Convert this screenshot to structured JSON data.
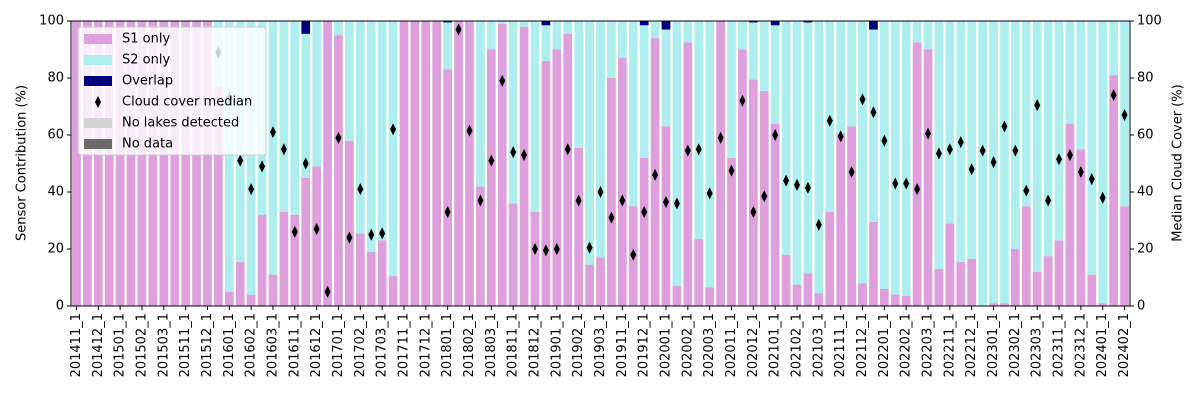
{
  "chart_data": {
    "type": "bar",
    "stacked": true,
    "ylabel": "Sensor Contribution (%)",
    "y2label": "Median Cloud Cover (%)",
    "categories": [
      "201411_1",
      null,
      "201412_1",
      null,
      "201501_1",
      null,
      "201502_1",
      null,
      "201503_1",
      null,
      "201511_1",
      null,
      "201512_1",
      null,
      "201601_1",
      null,
      "201602_1",
      null,
      "201603_1",
      null,
      "201611_1",
      null,
      "201612_1",
      null,
      "201701_1",
      null,
      "201702_1",
      null,
      "201703_1",
      null,
      "201711_1",
      null,
      "201712_1",
      null,
      "201801_1",
      null,
      "201802_1",
      null,
      "201803_1",
      null,
      "201811_1",
      null,
      "201812_1",
      null,
      "201901_1",
      null,
      "201902_1",
      null,
      "201903_1",
      null,
      "201911_1",
      null,
      "201912_1",
      null,
      "202001_1",
      null,
      "202002_1",
      null,
      "202003_1",
      null,
      "202011_1",
      null,
      "202012_1",
      null,
      "202101_1",
      null,
      "202102_1",
      null,
      "202103_1",
      null,
      "202111_1",
      null,
      "202112_1",
      null,
      "202201_1",
      null,
      "202202_1",
      null,
      "202203_1",
      null,
      "202211_1",
      null,
      "202212_1",
      null,
      "202301_1",
      null,
      "202302_1",
      null,
      "202303_1",
      null,
      "202311_1",
      null,
      "202312_1",
      null,
      "202401_1",
      null,
      "202402_1"
    ],
    "series": [
      {
        "name": "S1 only",
        "color": "#dda0dd",
        "values": [
          100,
          100,
          100,
          100,
          100,
          100,
          100,
          100,
          100,
          100,
          100,
          100,
          100,
          77,
          5,
          15.5,
          4,
          32,
          11,
          33,
          32,
          45,
          49,
          100,
          95,
          58,
          25.5,
          19,
          23,
          10.5,
          100,
          100,
          100,
          100,
          83,
          100,
          100,
          42,
          90,
          99,
          36,
          98,
          33,
          86,
          90,
          95.5,
          55.5,
          14.5,
          17,
          80,
          87,
          35,
          52,
          94,
          63,
          7,
          92.5,
          23.5,
          6.5,
          100,
          52,
          90,
          79.5,
          75.5,
          64,
          18,
          7.5,
          11.5,
          4.5,
          33,
          60.5,
          63,
          8,
          29.5,
          6,
          4,
          3.5,
          92.5,
          90,
          13,
          29,
          15.5,
          16.5,
          0,
          1,
          1,
          20,
          35,
          12,
          17.5,
          23,
          64,
          55,
          11,
          1,
          81,
          35
        ]
      },
      {
        "name": "S2 only",
        "color": "#afeeee",
        "values": [
          0,
          0,
          0,
          0,
          0,
          0,
          0,
          0,
          0,
          0,
          0,
          0,
          0,
          23,
          95,
          84.5,
          96,
          68,
          89,
          67,
          68,
          50.5,
          51,
          0,
          5,
          42,
          74.5,
          81,
          77,
          89.5,
          0,
          0,
          0,
          0,
          16.5,
          0,
          0,
          58,
          10,
          1,
          64,
          2,
          67,
          12.5,
          10,
          4.5,
          44.5,
          85.5,
          83,
          20,
          13,
          65,
          46.5,
          6,
          34,
          93,
          7.5,
          76.5,
          93.5,
          0,
          48,
          10,
          20,
          24.5,
          34.5,
          82,
          92.5,
          88,
          95.5,
          67,
          39.5,
          37,
          92,
          67.5,
          94,
          96,
          96.5,
          7.5,
          10,
          87,
          71,
          84.5,
          83.5,
          100,
          99,
          99,
          80,
          65,
          88,
          82.5,
          77,
          36,
          45,
          89,
          99,
          19,
          65
        ]
      },
      {
        "name": "Overlap",
        "color": "#000080",
        "values": [
          0,
          0,
          0,
          0,
          0,
          0,
          0,
          0,
          0,
          0,
          0,
          0,
          0,
          0,
          0,
          0,
          0,
          0,
          0,
          0,
          0,
          4.5,
          0,
          0,
          0,
          0,
          0,
          0,
          0,
          0,
          0,
          0,
          0,
          0,
          0.5,
          0,
          0,
          0,
          0,
          0,
          0,
          0,
          0,
          1.5,
          0,
          0,
          0,
          0,
          0,
          0,
          0,
          0,
          1.5,
          0,
          3,
          0,
          0,
          0,
          0,
          0,
          0,
          0,
          0.5,
          0,
          1.5,
          0,
          0,
          0.5,
          0,
          0,
          0,
          0,
          0,
          3,
          0,
          0,
          0,
          0,
          0,
          0,
          0,
          0,
          0,
          0,
          0,
          0,
          0,
          0,
          0,
          0,
          0,
          0,
          0,
          0,
          0,
          0,
          0
        ]
      },
      {
        "name": "Cloud cover median",
        "type": "scatter",
        "axis": "y2",
        "color": "#000000",
        "values": [
          null,
          null,
          null,
          null,
          null,
          null,
          null,
          null,
          null,
          null,
          null,
          null,
          null,
          89,
          73,
          51,
          41,
          49,
          61,
          55,
          26,
          50,
          27,
          5,
          59,
          24,
          41,
          25,
          25.5,
          62,
          null,
          null,
          null,
          null,
          33,
          97,
          61.5,
          37,
          51,
          79,
          54,
          53,
          20,
          19.5,
          20,
          55,
          37,
          20.5,
          40,
          31,
          37,
          18,
          33,
          46,
          36.5,
          36,
          54.5,
          55,
          39.5,
          59,
          47.5,
          72,
          33,
          38.5,
          60,
          44,
          42.5,
          41.5,
          28.5,
          65,
          59.5,
          47,
          72.5,
          68,
          58,
          43,
          43,
          41,
          60.5,
          53.5,
          55,
          57.5,
          48,
          54.5,
          50.5,
          63,
          54.5,
          40.5,
          70.5,
          37,
          51.5,
          53,
          47,
          44.5,
          38,
          74,
          67
        ]
      },
      {
        "name": "No lakes detected",
        "color": "#d3d3d3",
        "values": [
          0,
          0,
          0,
          0,
          0,
          0,
          0,
          0,
          0,
          0,
          0,
          0,
          0,
          0,
          0,
          0,
          0,
          0,
          0,
          0,
          0,
          0,
          0,
          0,
          0,
          0,
          0,
          0,
          0,
          0,
          0,
          0,
          0,
          0,
          0,
          0,
          0,
          0,
          0,
          0,
          0,
          0,
          0,
          0,
          0,
          0,
          0,
          0,
          0,
          0,
          0,
          0,
          0,
          0,
          0,
          0,
          0,
          0,
          0,
          0,
          0,
          0,
          0,
          0,
          0,
          0,
          0,
          0,
          0,
          0,
          0,
          0,
          0,
          0,
          0,
          0,
          0,
          0,
          0,
          0,
          0,
          0,
          0,
          0,
          0,
          0,
          0,
          0,
          0,
          0,
          0,
          0,
          0,
          0,
          0,
          0,
          0
        ]
      },
      {
        "name": "No data",
        "color": "#696969",
        "values": [
          0,
          0,
          0,
          0,
          0,
          0,
          0,
          0,
          0,
          0,
          0,
          0,
          0,
          0,
          0,
          0,
          0,
          0,
          0,
          0,
          0,
          0,
          0,
          0,
          0,
          0,
          0,
          0,
          0,
          0,
          0,
          0,
          0,
          0,
          0,
          0,
          0,
          0,
          0,
          0,
          0,
          0,
          0,
          0,
          0,
          0,
          0,
          0,
          0,
          0,
          0,
          0,
          0,
          0,
          0,
          0,
          0,
          0,
          0,
          0,
          0,
          0,
          0,
          0,
          0,
          0,
          0,
          0,
          0,
          0,
          0,
          0,
          0,
          0,
          0,
          0,
          0,
          0,
          0,
          0,
          0,
          0,
          0,
          0,
          0,
          0,
          0,
          0,
          0,
          0,
          0,
          0,
          0,
          0,
          0,
          0,
          0
        ]
      }
    ],
    "ylim": [
      0,
      100
    ],
    "yticks": [
      0,
      20,
      40,
      60,
      80,
      100
    ],
    "y2lim": [
      0,
      100
    ],
    "y2ticks": [
      0,
      20,
      40,
      60,
      80,
      100
    ],
    "legend": "upper left"
  }
}
